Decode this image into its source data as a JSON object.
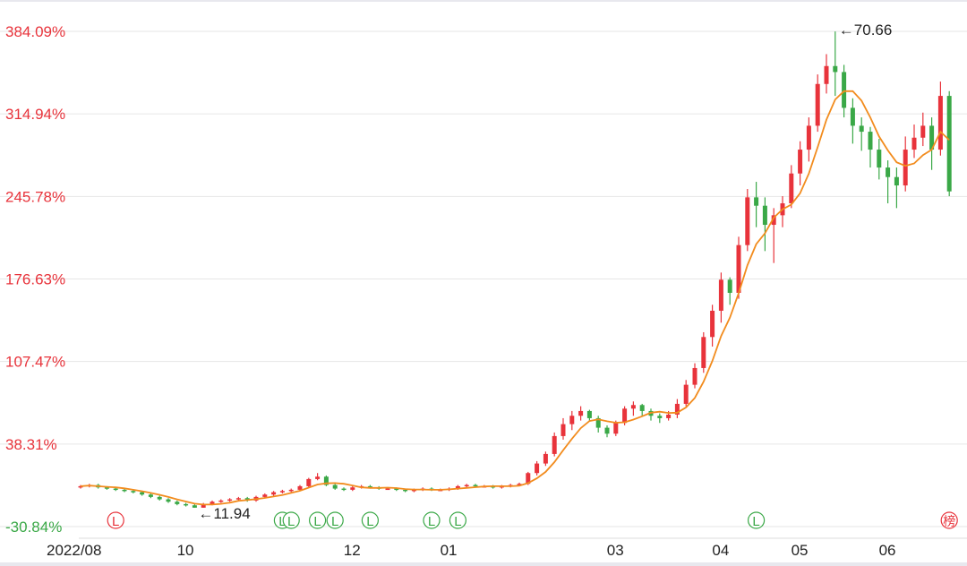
{
  "chart_data": {
    "type": "candlestick",
    "y_unit": "%",
    "ylim": [
      -30.84,
      384.09
    ],
    "y_ticks": [
      "384.09%",
      "314.94%",
      "245.78%",
      "176.63%",
      "107.47%",
      "38.31%",
      "-30.84%"
    ],
    "y_tick_values": [
      384.09,
      314.94,
      245.78,
      176.63,
      107.47,
      38.31,
      -30.84
    ],
    "x_ticks": [
      {
        "label": "2022/08",
        "candle": 0
      },
      {
        "label": "10",
        "candle": 12
      },
      {
        "label": "12",
        "candle": 31
      },
      {
        "label": "01",
        "candle": 42
      },
      {
        "label": "03",
        "candle": 61
      },
      {
        "label": "04",
        "candle": 73
      },
      {
        "label": "05",
        "candle": 82
      },
      {
        "label": "06",
        "candle": 92
      }
    ],
    "grid": true,
    "colors": {
      "up": "#e8333b",
      "down": "#3aa847",
      "ma": "#f28c1e",
      "grid": "#e6e6e6",
      "tick_positive": "#e8333b",
      "tick_negative": "#3aa847"
    },
    "moving_average_period": 5,
    "annotations": [
      {
        "text": "←11.94",
        "candle": 13
      },
      {
        "text": "←70.66",
        "candle": 86
      }
    ],
    "markers": [
      {
        "label": "L",
        "color": "red",
        "candle": 4
      },
      {
        "label": "L",
        "color": "green",
        "candle": 23
      },
      {
        "label": "L",
        "color": "green",
        "candle": 24
      },
      {
        "label": "L",
        "color": "green",
        "candle": 27
      },
      {
        "label": "L",
        "color": "green",
        "candle": 29
      },
      {
        "label": "L",
        "color": "green",
        "candle": 33
      },
      {
        "label": "L",
        "color": "green",
        "candle": 40
      },
      {
        "label": "L",
        "color": "green",
        "candle": 43
      },
      {
        "label": "L",
        "color": "green",
        "candle": 77
      },
      {
        "label": "榜",
        "color": "red",
        "candle": 99
      }
    ],
    "candles_ohlc": [
      [
        2,
        4,
        1,
        3
      ],
      [
        3,
        5,
        2,
        4
      ],
      [
        4,
        5,
        1,
        2
      ],
      [
        2,
        3,
        0,
        1
      ],
      [
        1,
        2,
        -1,
        0
      ],
      [
        0,
        1,
        -2,
        -1
      ],
      [
        -1,
        0,
        -3,
        -2
      ],
      [
        -2,
        -1,
        -5,
        -4
      ],
      [
        -4,
        -3,
        -7,
        -6
      ],
      [
        -6,
        -5,
        -9,
        -8
      ],
      [
        -8,
        -7,
        -11,
        -10
      ],
      [
        -10,
        -9,
        -13,
        -12
      ],
      [
        -12,
        -11,
        -14,
        -13
      ],
      [
        -13,
        -12,
        -15,
        -15
      ],
      [
        -15,
        -11,
        -15,
        -12
      ],
      [
        -12,
        -9,
        -13,
        -10
      ],
      [
        -10,
        -8,
        -11,
        -9
      ],
      [
        -9,
        -7,
        -10,
        -8
      ],
      [
        -8,
        -6,
        -9,
        -7
      ],
      [
        -7,
        -6,
        -10,
        -9
      ],
      [
        -9,
        -5,
        -10,
        -6
      ],
      [
        -6,
        -3,
        -7,
        -4
      ],
      [
        -4,
        -1,
        -5,
        -2
      ],
      [
        -2,
        0,
        -3,
        -1
      ],
      [
        -1,
        1,
        -2,
        0
      ],
      [
        0,
        4,
        -1,
        3
      ],
      [
        3,
        10,
        2,
        9
      ],
      [
        9,
        14,
        8,
        11
      ],
      [
        11,
        12,
        3,
        4
      ],
      [
        4,
        5,
        0,
        1
      ],
      [
        1,
        2,
        -1,
        0
      ],
      [
        0,
        3,
        -1,
        2
      ],
      [
        2,
        4,
        1,
        3
      ],
      [
        3,
        4,
        1,
        2
      ],
      [
        2,
        3,
        0,
        1
      ],
      [
        1,
        2,
        0,
        1
      ],
      [
        1,
        2,
        -1,
        0
      ],
      [
        0,
        1,
        -2,
        -1
      ],
      [
        -1,
        1,
        -2,
        0
      ],
      [
        0,
        2,
        -1,
        1
      ],
      [
        1,
        2,
        -1,
        0
      ],
      [
        0,
        1,
        -1,
        0
      ],
      [
        0,
        2,
        -1,
        1
      ],
      [
        1,
        4,
        0,
        3
      ],
      [
        3,
        5,
        2,
        4
      ],
      [
        4,
        5,
        2,
        3
      ],
      [
        3,
        4,
        2,
        3
      ],
      [
        3,
        4,
        1,
        2
      ],
      [
        2,
        4,
        1,
        3
      ],
      [
        3,
        5,
        2,
        4
      ],
      [
        4,
        6,
        3,
        5
      ],
      [
        5,
        15,
        4,
        14
      ],
      [
        14,
        24,
        12,
        22
      ],
      [
        22,
        32,
        20,
        30
      ],
      [
        30,
        48,
        28,
        45
      ],
      [
        45,
        60,
        42,
        55
      ],
      [
        55,
        66,
        50,
        62
      ],
      [
        62,
        70,
        58,
        66
      ],
      [
        66,
        67,
        57,
        60
      ],
      [
        60,
        62,
        48,
        52
      ],
      [
        52,
        54,
        44,
        47
      ],
      [
        47,
        58,
        45,
        56
      ],
      [
        56,
        70,
        54,
        68
      ],
      [
        68,
        74,
        62,
        71
      ],
      [
        71,
        72,
        62,
        66
      ],
      [
        66,
        68,
        58,
        62
      ],
      [
        62,
        64,
        56,
        60
      ],
      [
        60,
        66,
        58,
        63
      ],
      [
        63,
        76,
        60,
        72
      ],
      [
        72,
        92,
        70,
        88
      ],
      [
        88,
        106,
        85,
        102
      ],
      [
        102,
        132,
        98,
        128
      ],
      [
        128,
        155,
        120,
        150
      ],
      [
        150,
        182,
        140,
        176
      ],
      [
        176,
        178,
        155,
        165
      ],
      [
        165,
        212,
        160,
        205
      ],
      [
        205,
        252,
        200,
        245
      ],
      [
        245,
        258,
        220,
        238
      ],
      [
        238,
        245,
        200,
        222
      ],
      [
        222,
        236,
        190,
        230
      ],
      [
        230,
        246,
        220,
        240
      ],
      [
        240,
        272,
        236,
        265
      ],
      [
        265,
        292,
        255,
        285
      ],
      [
        285,
        312,
        275,
        305
      ],
      [
        305,
        348,
        300,
        340
      ],
      [
        340,
        365,
        332,
        355
      ],
      [
        355,
        384,
        330,
        350
      ],
      [
        350,
        356,
        312,
        320
      ],
      [
        320,
        328,
        290,
        305
      ],
      [
        305,
        312,
        284,
        300
      ],
      [
        300,
        304,
        270,
        285
      ],
      [
        285,
        294,
        260,
        270
      ],
      [
        270,
        276,
        240,
        262
      ],
      [
        262,
        270,
        236,
        255
      ],
      [
        255,
        296,
        250,
        285
      ],
      [
        285,
        306,
        278,
        295
      ],
      [
        295,
        316,
        288,
        305
      ],
      [
        305,
        312,
        268,
        285
      ],
      [
        285,
        342,
        280,
        330
      ],
      [
        330,
        334,
        246,
        250
      ]
    ]
  }
}
